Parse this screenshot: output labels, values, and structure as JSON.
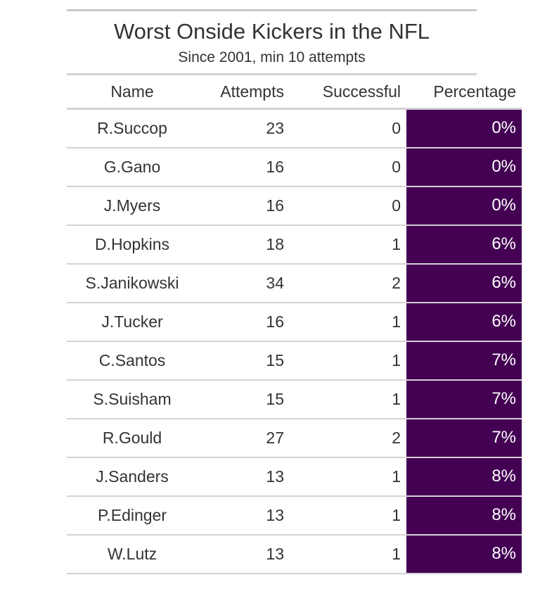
{
  "chart_data": {
    "type": "table",
    "title": "Worst Onside Kickers in the NFL",
    "subtitle": "Since 2001, min 10 attempts",
    "columns": [
      "Name",
      "Attempts",
      "Successful",
      "Percentage"
    ],
    "rows": [
      {
        "name": "R.Succop",
        "attempts": "23",
        "successful": "0",
        "percentage": "0%"
      },
      {
        "name": "G.Gano",
        "attempts": "16",
        "successful": "0",
        "percentage": "0%"
      },
      {
        "name": "J.Myers",
        "attempts": "16",
        "successful": "0",
        "percentage": "0%"
      },
      {
        "name": "D.Hopkins",
        "attempts": "18",
        "successful": "1",
        "percentage": "6%"
      },
      {
        "name": "S.Janikowski",
        "attempts": "34",
        "successful": "2",
        "percentage": "6%"
      },
      {
        "name": "J.Tucker",
        "attempts": "16",
        "successful": "1",
        "percentage": "6%"
      },
      {
        "name": "C.Santos",
        "attempts": "15",
        "successful": "1",
        "percentage": "7%"
      },
      {
        "name": "S.Suisham",
        "attempts": "15",
        "successful": "1",
        "percentage": "7%"
      },
      {
        "name": "R.Gould",
        "attempts": "27",
        "successful": "2",
        "percentage": "7%"
      },
      {
        "name": "J.Sanders",
        "attempts": "13",
        "successful": "1",
        "percentage": "8%"
      },
      {
        "name": "P.Edinger",
        "attempts": "13",
        "successful": "1",
        "percentage": "8%"
      },
      {
        "name": "W.Lutz",
        "attempts": "13",
        "successful": "1",
        "percentage": "8%"
      }
    ],
    "percentage_fill_color": "#440154",
    "border_color": "#d3d3d3"
  }
}
